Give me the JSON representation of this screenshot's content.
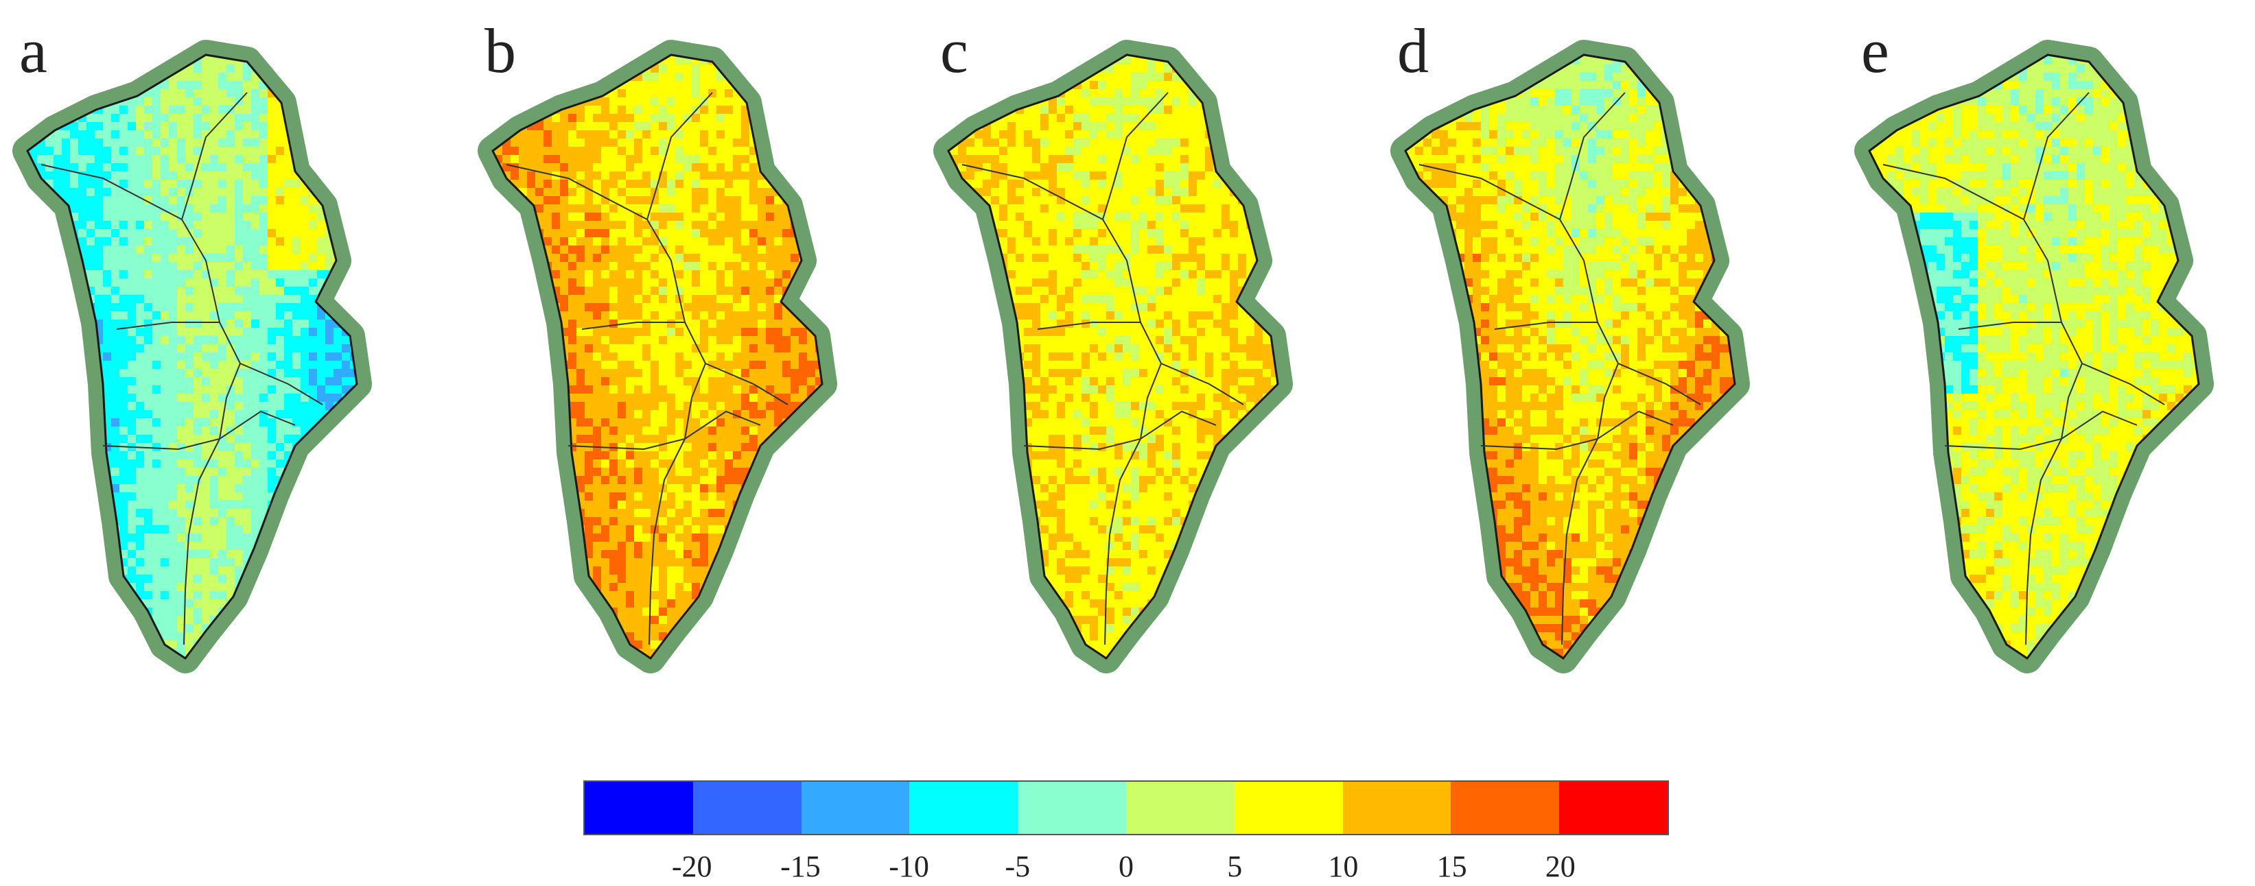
{
  "panels": [
    {
      "label": "a",
      "bias": -3,
      "north_shift": -2
    },
    {
      "label": "b",
      "bias": 8,
      "north_shift": -3
    },
    {
      "label": "c",
      "bias": 5,
      "north_shift": 0
    },
    {
      "label": "d",
      "bias": 9,
      "north_shift": -10
    },
    {
      "label": "e",
      "bias": 4,
      "north_shift": -3
    }
  ],
  "colorbar": {
    "colors": [
      "#0000ff",
      "#3366ff",
      "#33aaff",
      "#00ffff",
      "#88ffcc",
      "#ccff66",
      "#ffff00",
      "#ffbb00",
      "#ff6600",
      "#ff0000"
    ],
    "labels": [
      "-20",
      "-15",
      "-10",
      "-5",
      "0",
      "5",
      "10",
      "15",
      "20"
    ]
  },
  "style": {
    "land_color": "#6b9f6b",
    "border_color": "#1a1a1a"
  }
}
